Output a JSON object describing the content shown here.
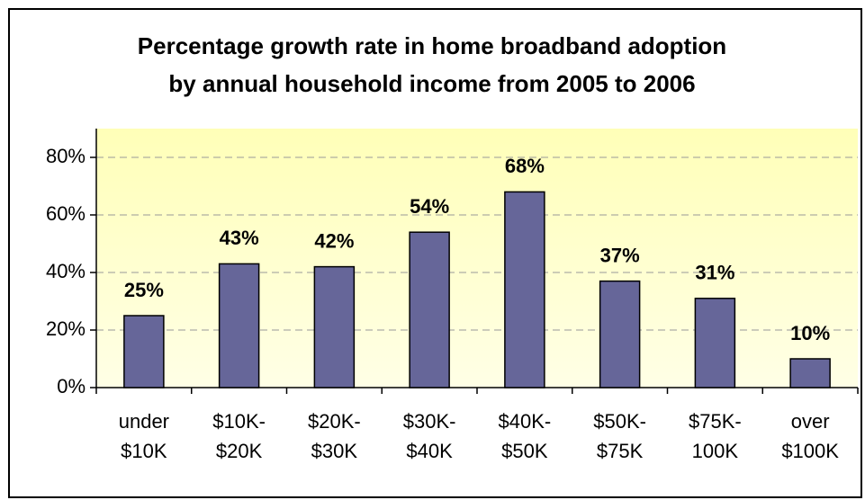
{
  "chart_data": {
    "type": "bar",
    "title": "Percentage growth rate in home broadband adoption by annual household income from 2005 to 2006",
    "categories": [
      "under $10K",
      "$10K-$20K",
      "$20K-$30K",
      "$30K-$40K",
      "$40K-$50K",
      "$50K-$75K",
      "$75K-100K",
      "over $100K"
    ],
    "values": [
      25,
      43,
      42,
      54,
      68,
      37,
      31,
      10
    ],
    "value_labels": [
      "25%",
      "43%",
      "42%",
      "54%",
      "68%",
      "37%",
      "31%",
      "10%"
    ],
    "color": "#666699",
    "ylim": [
      0,
      90
    ],
    "yticks": [
      {
        "value": 0,
        "label": "0%"
      },
      {
        "value": 20,
        "label": "20%"
      },
      {
        "value": 40,
        "label": "40%"
      },
      {
        "value": 60,
        "label": "60%"
      },
      {
        "value": 80,
        "label": "80%"
      }
    ],
    "grid": true
  }
}
